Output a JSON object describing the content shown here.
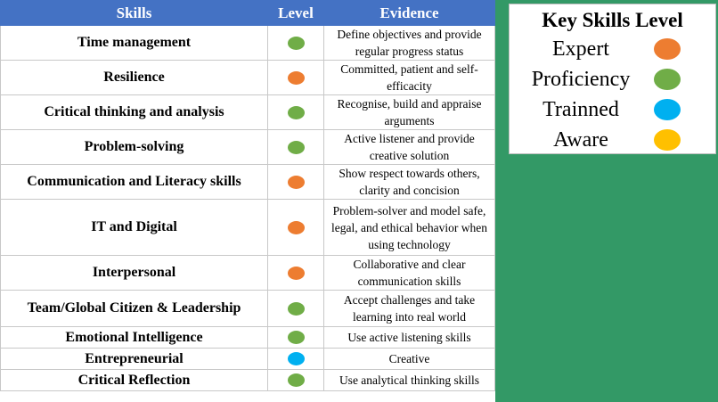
{
  "table": {
    "headers": [
      "Skills",
      "Level",
      "Evidence"
    ],
    "rows": [
      {
        "skill": "Time management",
        "level": "Proficiency",
        "color": "#70ad47",
        "evidence": "Define objectives and provide regular progress status"
      },
      {
        "skill": "Resilience",
        "level": "Expert",
        "color": "#ed7d31",
        "evidence": "Committed, patient and self-efficacity"
      },
      {
        "skill": "Critical thinking and analysis",
        "level": "Proficiency",
        "color": "#70ad47",
        "evidence": "Recognise, build and appraise arguments"
      },
      {
        "skill": "Problem-solving",
        "level": "Proficiency",
        "color": "#70ad47",
        "evidence": "Active listener and provide creative solution"
      },
      {
        "skill": "Communication and Literacy skills",
        "level": "Expert",
        "color": "#ed7d31",
        "evidence": "Show respect towards others, clarity and concision"
      },
      {
        "skill": "IT and Digital",
        "level": "Expert",
        "color": "#ed7d31",
        "evidence": "Problem-solver and model safe, legal, and ethical behavior when using technology"
      },
      {
        "skill": "Interpersonal",
        "level": "Expert",
        "color": "#ed7d31",
        "evidence": "Collaborative and clear communication skills"
      },
      {
        "skill": "Team/Global Citizen & Leadership",
        "level": "Proficiency",
        "color": "#70ad47",
        "evidence": "Accept challenges and take learning into real world"
      },
      {
        "skill": "Emotional Intelligence",
        "level": "Proficiency",
        "color": "#70ad47",
        "evidence": "Use active listening skills"
      },
      {
        "skill": "Entrepreneurial",
        "level": "Trainned",
        "color": "#00b0f0",
        "evidence": "Creative"
      },
      {
        "skill": "Critical Reflection",
        "level": "Proficiency",
        "color": "#70ad47",
        "evidence": "Use analytical thinking skills"
      }
    ]
  },
  "key": {
    "title": "Key Skills Level",
    "items": [
      {
        "label": "Expert",
        "color": "#ed7d31"
      },
      {
        "label": "Proficiency",
        "color": "#70ad47"
      },
      {
        "label": "Trainned",
        "color": "#00b0f0"
      },
      {
        "label": "Aware",
        "color": "#ffc000"
      }
    ]
  },
  "colors": {
    "header_bg": "#4472c4",
    "panel_bg": "#339966"
  }
}
